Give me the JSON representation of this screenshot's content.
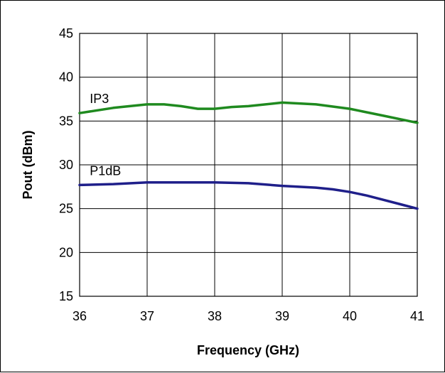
{
  "chart_data": {
    "type": "line",
    "title": "",
    "xlabel": "Frequency (GHz)",
    "ylabel": "Pout (dBm)",
    "xlim": [
      36,
      41
    ],
    "ylim": [
      15,
      45
    ],
    "x_ticks": [
      "36",
      "37",
      "38",
      "39",
      "40",
      "41"
    ],
    "y_ticks": [
      "15",
      "20",
      "25",
      "30",
      "35",
      "40",
      "45"
    ],
    "grid": true,
    "legend": "none",
    "series": [
      {
        "name": "IP3",
        "color": "#1f8a1f",
        "x": [
          36,
          36.5,
          37,
          37.25,
          37.5,
          37.75,
          38,
          38.25,
          38.5,
          39,
          39.5,
          40,
          40.5,
          41
        ],
        "y": [
          35.9,
          36.5,
          36.9,
          36.9,
          36.7,
          36.4,
          36.4,
          36.6,
          36.7,
          37.1,
          36.9,
          36.4,
          35.6,
          34.8
        ]
      },
      {
        "name": "P1dB",
        "color": "#1f1f8a",
        "x": [
          36,
          36.5,
          37,
          37.5,
          38,
          38.5,
          39,
          39.5,
          39.75,
          40,
          40.25,
          40.5,
          40.75,
          41
        ],
        "y": [
          27.7,
          27.8,
          28.0,
          28.0,
          28.0,
          27.9,
          27.6,
          27.4,
          27.2,
          26.9,
          26.5,
          26.0,
          25.5,
          25.0
        ]
      }
    ]
  }
}
